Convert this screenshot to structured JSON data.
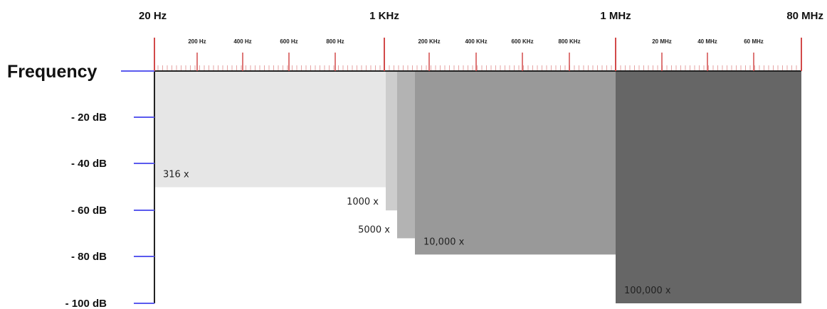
{
  "chart_data": {
    "type": "bar",
    "axis_title": "Frequency",
    "x_scale": "log",
    "x_major": [
      {
        "value": 20,
        "label": "20 Hz"
      },
      {
        "value": 1000,
        "label": "1 KHz"
      },
      {
        "value": 1000000,
        "label": "1 MHz"
      },
      {
        "value": 80000000,
        "label": "80 MHz"
      }
    ],
    "x_minor": [
      {
        "value": 200,
        "label": "200 Hz"
      },
      {
        "value": 400,
        "label": "400 Hz"
      },
      {
        "value": 600,
        "label": "600 Hz"
      },
      {
        "value": 800,
        "label": "800 Hz"
      },
      {
        "value": 200000,
        "label": "200 KHz"
      },
      {
        "value": 400000,
        "label": "400 KHz"
      },
      {
        "value": 600000,
        "label": "600 KHz"
      },
      {
        "value": 800000,
        "label": "800 KHz"
      },
      {
        "value": 20000000,
        "label": "20 MHz"
      },
      {
        "value": 40000000,
        "label": "40 MHz"
      },
      {
        "value": 60000000,
        "label": "60 MHz"
      }
    ],
    "y_ticks": [
      {
        "value": -20,
        "label": "- 20 dB"
      },
      {
        "value": -40,
        "label": "- 40 dB"
      },
      {
        "value": -60,
        "label": "- 60 dB"
      },
      {
        "value": -80,
        "label": "- 80 dB"
      },
      {
        "value": -100,
        "label": "- 100 dB"
      }
    ],
    "ylim": [
      -100,
      0
    ],
    "bars": [
      {
        "label": "316 x",
        "x_start": 20,
        "x_end": 1100,
        "y": -50,
        "color": "#e6e6e6",
        "label_side": "inside-left"
      },
      {
        "label": "1000 x",
        "x_start": 1100,
        "x_end": 1500,
        "y": -60,
        "color": "#cdcdcd",
        "label_side": "outside-left"
      },
      {
        "label": "5000 x",
        "x_start": 1500,
        "x_end": 2400,
        "y": -72,
        "color": "#b3b3b3",
        "label_side": "outside-left"
      },
      {
        "label": "10,000 x",
        "x_start": 2400,
        "x_end": 1000000,
        "y": -79,
        "color": "#999999",
        "label_side": "inside-left"
      },
      {
        "label": "100,000 x",
        "x_start": 1000000,
        "x_end": 80000000,
        "y": -100,
        "color": "#666666",
        "label_side": "inside-left"
      }
    ],
    "colors": {
      "tick": "#d24a4a",
      "ruler_fine": "#e6a3a3",
      "axis": "#5a5aee",
      "baseline": "#222222"
    }
  }
}
